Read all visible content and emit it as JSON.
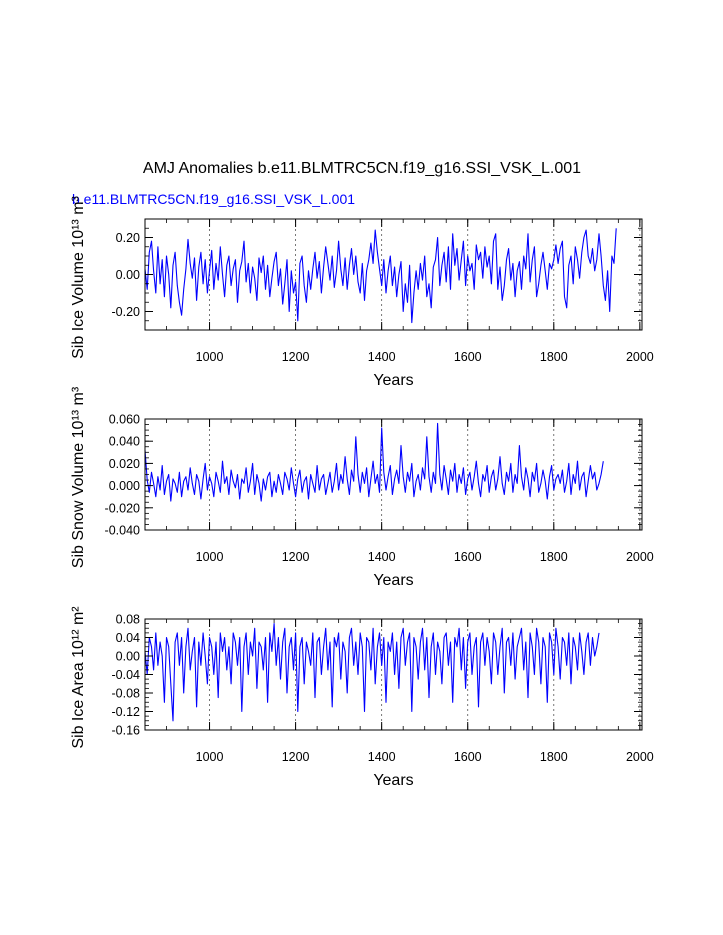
{
  "figure": {
    "main_title": "AMJ Anomalies b.e11.BLMTRC5CN.f19_g16.SSI_VSK_L.001",
    "panel_label": "b.e11.BLMTRC5CN.f19_g16.SSI_VSK_L.001",
    "series_color": "#0000ff"
  },
  "chart_data": [
    {
      "type": "line",
      "ylabel": "Sib Ice Volume 10¹³ m³",
      "xlabel": "Years",
      "xlim": [
        850,
        2005
      ],
      "ylim": [
        -0.3,
        0.3
      ],
      "x_ticks": [
        1000,
        1200,
        1400,
        1600,
        1800,
        2000
      ],
      "x_tick_labels": [
        "1000",
        "1200",
        "1400",
        "1600",
        "1800",
        "2000"
      ],
      "y_ticks": [
        -0.2,
        0.0,
        0.2
      ],
      "y_tick_labels": [
        "-0.20",
        "0.00",
        "0.20"
      ],
      "y_minor_step": 0.05,
      "grid": "vertical dashed at major x ticks",
      "series": [
        {
          "x_start": 850,
          "x_step": 5,
          "values": [
            0.03,
            -0.08,
            0.12,
            0.18,
            0.02,
            -0.1,
            0.15,
            -0.05,
            0.08,
            -0.12,
            0.1,
            0.0,
            -0.18,
            0.05,
            0.12,
            -0.06,
            -0.15,
            -0.22,
            -0.08,
            0.03,
            0.19,
            0.06,
            -0.02,
            0.09,
            -0.14,
            0.04,
            0.12,
            -0.05,
            0.08,
            -0.1,
            0.02,
            0.13,
            -0.08,
            0.06,
            -0.03,
            0.15,
            0.0,
            -0.12,
            0.05,
            0.1,
            -0.06,
            0.03,
            0.08,
            -0.15,
            0.02,
            0.07,
            0.18,
            -0.04,
            0.06,
            -0.1,
            0.04,
            -0.02,
            -0.14,
            0.09,
            0.01,
            0.1,
            -0.08,
            0.05,
            -0.12,
            -0.02,
            0.07,
            0.12,
            -0.06,
            0.03,
            -0.16,
            -0.05,
            0.08,
            -0.2,
            0.02,
            -0.1,
            -0.04,
            -0.25,
            0.06,
            0.1,
            -0.06,
            -0.15,
            0.02,
            -0.08,
            0.03,
            0.12,
            -0.02,
            0.07,
            -0.1,
            0.04,
            0.15,
            0.06,
            -0.03,
            0.1,
            -0.07,
            0.02,
            0.18,
            0.03,
            -0.06,
            0.09,
            -0.08,
            0.05,
            0.14,
            0.0,
            0.1,
            -0.04,
            -0.1,
            0.06,
            -0.14,
            0.02,
            0.08,
            0.17,
            0.06,
            0.24,
            0.12,
            0.03,
            -0.06,
            0.08,
            -0.1,
            0.02,
            0.1,
            -0.06,
            0.04,
            -0.12,
            0.0,
            0.07,
            -0.2,
            -0.05,
            -0.15,
            0.05,
            -0.26,
            -0.1,
            0.02,
            -0.08,
            0.06,
            -0.03,
            0.1,
            -0.12,
            -0.05,
            -0.18,
            0.04,
            0.08,
            0.2,
            -0.06,
            0.05,
            0.12,
            -0.04,
            0.15,
            -0.08,
            0.22,
            0.05,
            0.14,
            -0.03,
            0.08,
            0.18,
            -0.06,
            0.1,
            0.02,
            0.06,
            -0.08,
            0.16,
            0.08,
            0.12,
            -0.02,
            0.15,
            0.04,
            0.1,
            -0.05,
            0.18,
            0.22,
            -0.08,
            0.04,
            -0.14,
            -0.06,
            0.08,
            0.14,
            -0.03,
            0.06,
            -0.12,
            0.02,
            0.07,
            -0.08,
            0.1,
            0.03,
            0.22,
            -0.04,
            0.08,
            0.15,
            -0.12,
            -0.05,
            0.05,
            0.12,
            0.02,
            -0.08,
            0.06,
            0.03,
            0.08,
            0.16,
            0.06,
            0.14,
            0.18,
            -0.12,
            -0.18,
            0.05,
            0.1,
            -0.05,
            0.15,
            0.08,
            -0.02,
            0.12,
            0.2,
            0.24,
            0.1,
            0.06,
            0.14,
            0.02,
            0.08,
            0.22,
            0.1,
            -0.06,
            -0.14,
            0.02,
            -0.2,
            0.1,
            0.06,
            0.25
          ]
        }
      ]
    },
    {
      "type": "line",
      "ylabel": "Sib Snow Volume 10¹³ m³",
      "xlabel": "Years",
      "xlim": [
        850,
        2005
      ],
      "ylim": [
        -0.04,
        0.06
      ],
      "x_ticks": [
        1000,
        1200,
        1400,
        1600,
        1800,
        2000
      ],
      "x_tick_labels": [
        "1000",
        "1200",
        "1400",
        "1600",
        "1800",
        "2000"
      ],
      "y_ticks": [
        -0.04,
        -0.02,
        0.0,
        0.02,
        0.04,
        0.06
      ],
      "y_tick_labels": [
        "-0.040",
        "-0.020",
        "0.000",
        "0.020",
        "0.040",
        "0.060"
      ],
      "y_minor_step": 0.005,
      "grid": "vertical dashed at major x ticks",
      "series": [
        {
          "x_start": 850,
          "x_step": 5,
          "values": [
            0.032,
            0.005,
            -0.006,
            0.012,
            0.002,
            -0.01,
            0.008,
            -0.004,
            0.018,
            -0.008,
            0.004,
            0.01,
            -0.014,
            0.006,
            0.002,
            -0.006,
            0.012,
            -0.01,
            0.004,
            0.008,
            -0.004,
            0.016,
            0.002,
            -0.008,
            0.01,
            0.004,
            -0.012,
            0.006,
            0.02,
            -0.004,
            0.008,
            0.002,
            -0.01,
            0.012,
            0.004,
            -0.006,
            0.022,
            0.002,
            0.008,
            -0.008,
            0.014,
            0.004,
            -0.002,
            0.01,
            -0.012,
            0.006,
            0.002,
            0.016,
            -0.006,
            0.004,
            0.02,
            -0.008,
            0.01,
            0.002,
            -0.014,
            0.006,
            -0.004,
            0.008,
            0.012,
            -0.01,
            0.004,
            -0.006,
            0.01,
            0.002,
            -0.008,
            0.012,
            0.006,
            -0.004,
            0.016,
            0.002,
            -0.01,
            0.006,
            0.014,
            -0.006,
            0.004,
            0.008,
            -0.012,
            0.01,
            0.002,
            -0.006,
            0.018,
            -0.004,
            0.006,
            0.01,
            -0.008,
            0.002,
            0.012,
            -0.006,
            0.004,
            0.02,
            -0.004,
            0.01,
            0.002,
            0.026,
            0.006,
            -0.008,
            0.014,
            0.004,
            0.044,
            0.01,
            -0.006,
            0.012,
            0.002,
            0.016,
            -0.01,
            0.006,
            0.022,
            0.002,
            0.01,
            -0.006,
            0.052,
            0.012,
            -0.004,
            0.008,
            0.018,
            -0.008,
            0.006,
            0.014,
            0.002,
            0.036,
            0.008,
            -0.006,
            0.012,
            0.004,
            0.02,
            -0.01,
            0.004,
            0.01,
            -0.004,
            0.016,
            0.006,
            0.044,
            0.008,
            -0.006,
            0.012,
            0.002,
            0.056,
            0.01,
            -0.004,
            0.018,
            0.006,
            -0.008,
            0.014,
            0.004,
            0.02,
            -0.006,
            0.01,
            0.002,
            0.016,
            -0.008,
            0.006,
            0.012,
            -0.004,
            0.008,
            0.022,
            0.002,
            -0.01,
            0.01,
            0.004,
            0.018,
            -0.006,
            0.008,
            0.014,
            -0.004,
            0.006,
            0.026,
            0.002,
            -0.008,
            0.012,
            0.004,
            0.02,
            -0.006,
            0.01,
            0.002,
            0.036,
            0.008,
            -0.004,
            0.016,
            0.006,
            -0.01,
            0.012,
            0.004,
            0.02,
            -0.006,
            0.002,
            0.014,
            0.004,
            -0.012,
            0.008,
            0.018,
            -0.004,
            0.006,
            0.01,
            0.002,
            0.014,
            -0.006,
            0.004,
            0.02,
            -0.008,
            0.01,
            0.002,
            0.022,
            -0.004,
            0.008,
            0.012,
            -0.01,
            0.004,
            0.018,
            0.006,
            0.012,
            -0.004,
            0.002,
            0.01,
            0.022
          ]
        }
      ]
    },
    {
      "type": "line",
      "ylabel": "Sib Ice Area 10¹² m²",
      "xlabel": "Years",
      "xlim": [
        850,
        2005
      ],
      "ylim": [
        -0.16,
        0.08
      ],
      "x_ticks": [
        1000,
        1200,
        1400,
        1600,
        1800,
        2000
      ],
      "x_tick_labels": [
        "1000",
        "1200",
        "1400",
        "1600",
        "1800",
        "2000"
      ],
      "y_ticks": [
        -0.16,
        -0.12,
        -0.08,
        -0.04,
        0.0,
        0.04,
        0.08
      ],
      "y_tick_labels": [
        "-0.16",
        "-0.12",
        "-0.08",
        "-0.04",
        "0.00",
        "0.04",
        "0.08"
      ],
      "y_minor_step": 0.01,
      "grid": "vertical dashed at major x ticks",
      "series": [
        {
          "x_start": 850,
          "x_step": 5,
          "values": [
            0.01,
            -0.04,
            0.04,
            0.02,
            -0.03,
            0.05,
            -0.02,
            0.03,
            0.0,
            -0.1,
            0.04,
            0.02,
            -0.06,
            -0.14,
            0.03,
            0.05,
            -0.02,
            0.04,
            -0.08,
            0.02,
            0.06,
            -0.03,
            0.01,
            0.04,
            -0.11,
            0.03,
            -0.02,
            0.05,
            0.0,
            -0.06,
            0.04,
            0.02,
            -0.04,
            0.03,
            -0.09,
            0.05,
            0.01,
            0.04,
            -0.03,
            0.02,
            -0.06,
            0.05,
            0.03,
            -0.02,
            0.04,
            -0.12,
            0.02,
            0.05,
            -0.04,
            0.03,
            0.0,
            0.06,
            -0.07,
            0.03,
            0.02,
            -0.03,
            0.04,
            -0.1,
            0.05,
            0.01,
            0.07,
            -0.02,
            0.04,
            -0.05,
            0.03,
            0.06,
            -0.08,
            0.02,
            0.04,
            -0.03,
            0.05,
            -0.12,
            0.02,
            0.04,
            -0.06,
            0.03,
            0.01,
            -0.02,
            0.05,
            -0.09,
            0.03,
            0.04,
            -0.04,
            0.02,
            0.06,
            -0.03,
            0.03,
            -0.11,
            0.04,
            0.02,
            0.05,
            -0.05,
            0.03,
            0.01,
            -0.08,
            0.04,
            0.06,
            -0.02,
            0.03,
            -0.04,
            0.05,
            0.02,
            -0.12,
            0.04,
            0.03,
            -0.03,
            0.06,
            -0.06,
            0.02,
            0.05,
            -0.02,
            0.04,
            -0.1,
            0.03,
            0.01,
            0.05,
            -0.04,
            0.03,
            -0.07,
            0.04,
            0.06,
            -0.02,
            0.03,
            0.05,
            -0.12,
            0.04,
            0.02,
            -0.05,
            0.03,
            0.06,
            -0.03,
            0.04,
            -0.09,
            0.02,
            0.05,
            -0.04,
            0.03,
            0.01,
            -0.06,
            0.04,
            0.05,
            -0.02,
            0.03,
            -0.1,
            0.04,
            0.02,
            0.06,
            -0.03,
            0.04,
            -0.07,
            0.03,
            0.05,
            -0.04,
            0.02,
            0.04,
            -0.11,
            0.03,
            0.05,
            -0.02,
            0.04,
            0.01,
            -0.06,
            0.05,
            0.03,
            -0.04,
            0.02,
            0.06,
            -0.08,
            0.03,
            0.04,
            -0.02,
            0.05,
            -0.05,
            0.02,
            0.04,
            0.06,
            -0.03,
            0.03,
            -0.09,
            0.05,
            0.02,
            -0.04,
            0.06,
            0.03,
            -0.06,
            0.04,
            0.02,
            -0.1,
            0.05,
            0.03,
            -0.04,
            0.06,
            0.02,
            -0.05,
            0.04,
            0.03,
            -0.02,
            0.05,
            -0.06,
            0.04,
            0.02,
            -0.03,
            0.05,
            0.01,
            -0.04,
            0.03,
            0.05,
            -0.02,
            0.04,
            0.0,
            0.02,
            0.05
          ]
        }
      ]
    }
  ]
}
